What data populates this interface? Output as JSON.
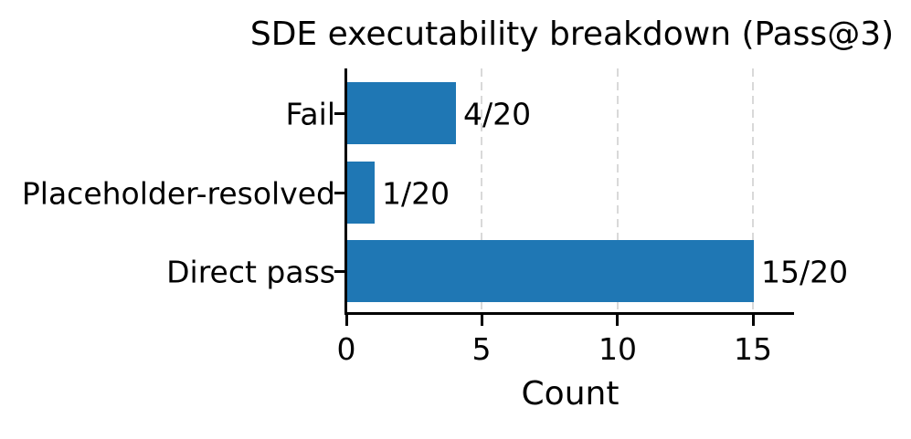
{
  "chart_data": {
    "type": "bar",
    "orientation": "horizontal",
    "title": "SDE executability breakdown (Pass@3)",
    "xlabel": "Count",
    "categories": [
      "Fail",
      "Placeholder-resolved",
      "Direct pass"
    ],
    "values": [
      4,
      1,
      15
    ],
    "denominator": 20,
    "bar_labels": [
      "4/20",
      "1/20",
      "15/20"
    ],
    "x_ticks": [
      0,
      5,
      10,
      15
    ],
    "xlim": [
      0,
      16.5
    ],
    "gridlines_at": [
      5,
      10,
      15
    ],
    "grid_style": "dashed",
    "grid_on": true,
    "legend": null,
    "bar_color": "#1f77b4",
    "grid_color": "#d9d9d9",
    "axis_color": "#000000",
    "text_color": "#000000"
  }
}
